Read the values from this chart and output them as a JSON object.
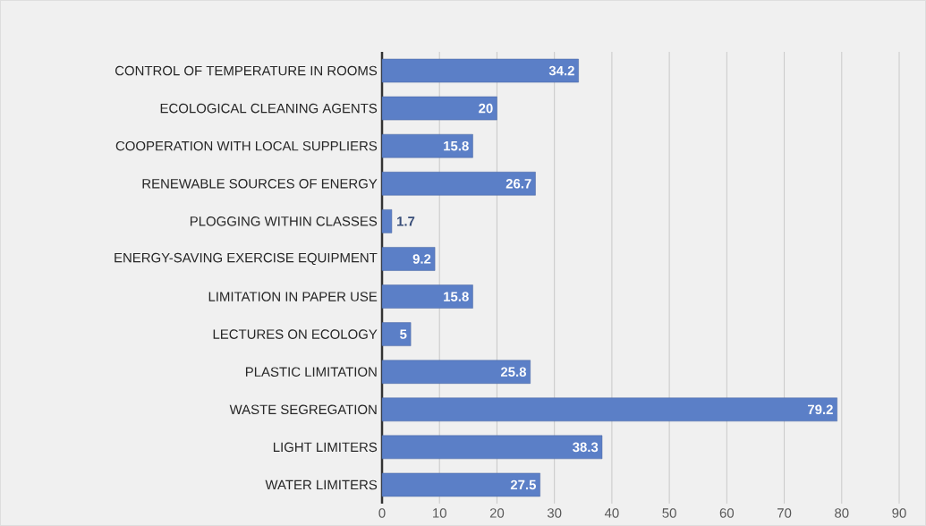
{
  "chart_data": {
    "type": "bar",
    "orientation": "horizontal",
    "categories": [
      "CONTROL OF TEMPERATURE IN ROOMS",
      "ECOLOGICAL CLEANING AGENTS",
      "COOPERATION WITH LOCAL SUPPLIERS",
      "RENEWABLE SOURCES OF ENERGY",
      "PLOGGING WITHIN CLASSES",
      "ENERGY-SAVING EXERCISE EQUIPMENT",
      "LIMITATION IN PAPER USE",
      "LECTURES ON ECOLOGY",
      "PLASTIC LIMITATION",
      "WASTE SEGREGATION",
      "LIGHT LIMITERS",
      "WATER LIMITERS"
    ],
    "values": [
      34.2,
      20,
      15.8,
      26.7,
      1.7,
      9.2,
      15.8,
      5,
      25.8,
      79.2,
      38.3,
      27.5
    ],
    "color": "#5b7fc7",
    "xlim": [
      0,
      90
    ],
    "xticks": [
      0,
      10,
      20,
      30,
      40,
      50,
      60,
      70,
      80,
      90
    ],
    "grid": "x",
    "data_labels": true
  }
}
